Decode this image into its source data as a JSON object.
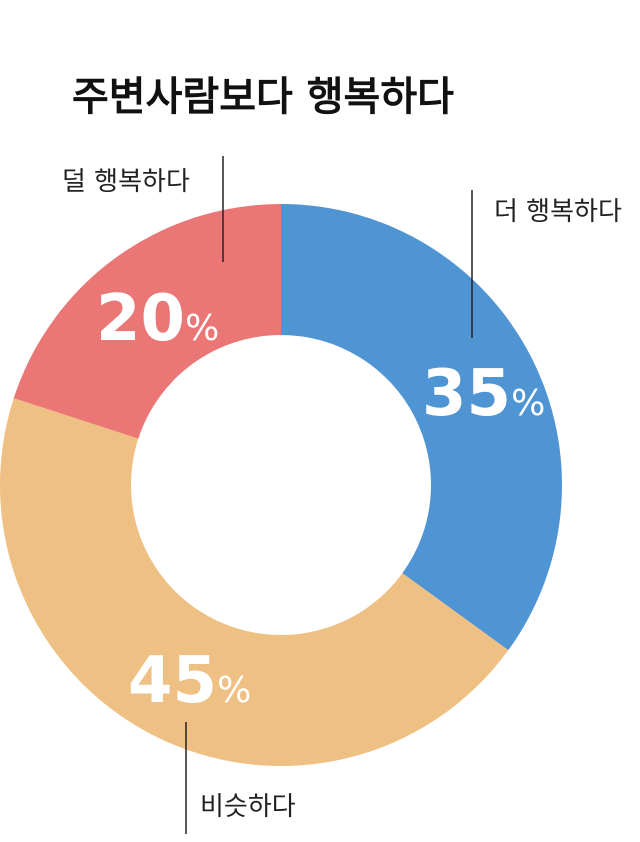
{
  "chart_data": {
    "type": "pie",
    "title": "주변사람보다 행복하다",
    "categories": [
      "더 행복하다",
      "비슷하다",
      "덜 행복하다"
    ],
    "values": [
      35,
      45,
      20
    ],
    "value_labels": [
      "35",
      "45",
      "20"
    ],
    "unit": "%",
    "colors": [
      "#4f94d3",
      "#efc083",
      "#ea7675"
    ]
  }
}
